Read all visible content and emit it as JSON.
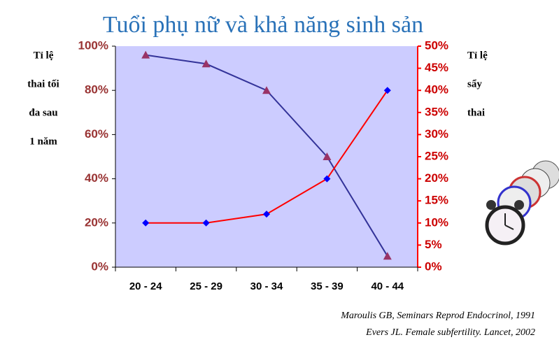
{
  "chart_data": {
    "type": "line",
    "title": "Tuổi phụ nữ và khả năng sinh sản",
    "ylabel": [
      "Tỉ lệ",
      "thai tối",
      "đa sau",
      "1 năm"
    ],
    "y2label": [
      "Tỉ lệ",
      "sẩy",
      "thai"
    ],
    "categories": [
      "20 - 24",
      "25 - 29",
      "30 - 34",
      "35 - 39",
      "40 - 44"
    ],
    "series": [
      {
        "color": "#333399",
        "marker": "triangle",
        "marker_color": "#993366",
        "values": [
          96,
          92,
          80,
          50,
          5
        ]
      },
      {
        "color": "#ff0000",
        "marker": "diamond",
        "marker_color": "#0000ff",
        "axis": "y2",
        "values": [
          10,
          10,
          12,
          20,
          40
        ]
      }
    ],
    "ylim": [
      0,
      100
    ],
    "yticks": [
      {
        "value": 0,
        "label": "0%"
      },
      {
        "value": 20,
        "label": "20%"
      },
      {
        "value": 40,
        "label": "40%"
      },
      {
        "value": 60,
        "label": "60%"
      },
      {
        "value": 80,
        "label": "80%"
      },
      {
        "value": 100,
        "label": "100%"
      }
    ],
    "y2lim": [
      0,
      50
    ],
    "y2ticks": [
      {
        "value": 0,
        "label": "0%"
      },
      {
        "value": 5,
        "label": "5%"
      },
      {
        "value": 10,
        "label": "10%"
      },
      {
        "value": 15,
        "label": "15%"
      },
      {
        "value": 20,
        "label": "20%"
      },
      {
        "value": 25,
        "label": "25%"
      },
      {
        "value": 30,
        "label": "30%"
      },
      {
        "value": 35,
        "label": "35%"
      },
      {
        "value": 40,
        "label": "40%"
      },
      {
        "value": 45,
        "label": "45%"
      },
      {
        "value": 50,
        "label": "50%"
      }
    ],
    "plot_background": "#ccccff",
    "notes": [
      "Maroulis GB, Seminars Reprod Endocrinol, 1991",
      "Evers JL. Female subfertility. Lancet, 2002"
    ]
  }
}
